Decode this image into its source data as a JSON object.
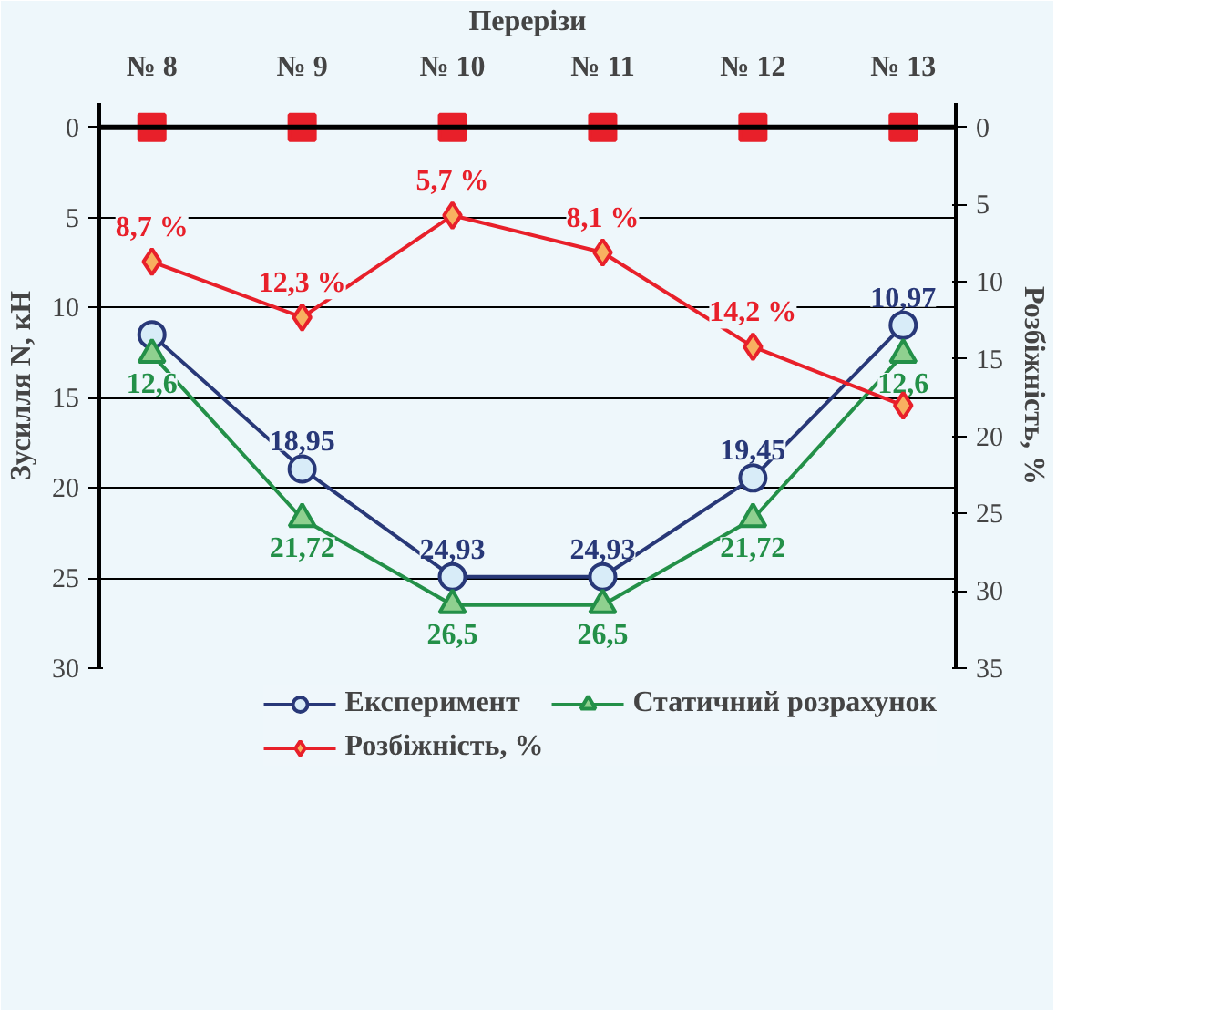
{
  "chart_data": {
    "type": "line",
    "xlabel": "Перерізи",
    "ylabel": "Зусилля N, кН",
    "y2label": "Розбіжність, %",
    "categories": [
      "№ 8",
      "№ 9",
      "№ 10",
      "№ 11",
      "№ 12",
      "№ 13"
    ],
    "ylim": [
      30,
      0
    ],
    "yticks": [
      0,
      5,
      10,
      15,
      20,
      25,
      30
    ],
    "y2lim": [
      35,
      0
    ],
    "y2ticks": [
      0,
      5,
      10,
      15,
      20,
      25,
      30,
      35
    ],
    "grid": "y",
    "legend": "bottom",
    "ref_lines": [
      {
        "axis": "y",
        "value": 0,
        "color": "#000000"
      }
    ],
    "line_style": "solid",
    "series": [
      {
        "name": "Експеримент",
        "color": "#283878",
        "marker": "circle",
        "values": [
          11.5,
          18.95,
          24.93,
          24.93,
          19.45,
          10.97
        ],
        "value_labels": [
          null,
          "18,95",
          "24,93",
          "24,93",
          "19,45",
          "10,97"
        ]
      },
      {
        "name": "Статичний розрахунок",
        "color": "#239048",
        "marker": "triangle",
        "values": [
          12.6,
          21.72,
          26.5,
          26.5,
          21.72,
          12.6
        ],
        "value_labels": [
          "12,6",
          "21,72",
          "26,5",
          "26,5",
          "21,72",
          "12,6"
        ]
      },
      {
        "name": "Розбіжність, %",
        "color": "#e8202a",
        "marker": "diamond",
        "axis": "y2",
        "values": [
          8.7,
          12.3,
          5.7,
          8.1,
          14.2,
          18
        ],
        "value_labels": [
          "8,7 %",
          "12,3 %",
          "5,7 %",
          "8,1 %",
          "14,2 %",
          null
        ]
      },
      {
        "type": "scatter",
        "color": "#e8202a",
        "marker": "square",
        "values": [
          0,
          0,
          0,
          0,
          0,
          0
        ]
      }
    ]
  }
}
